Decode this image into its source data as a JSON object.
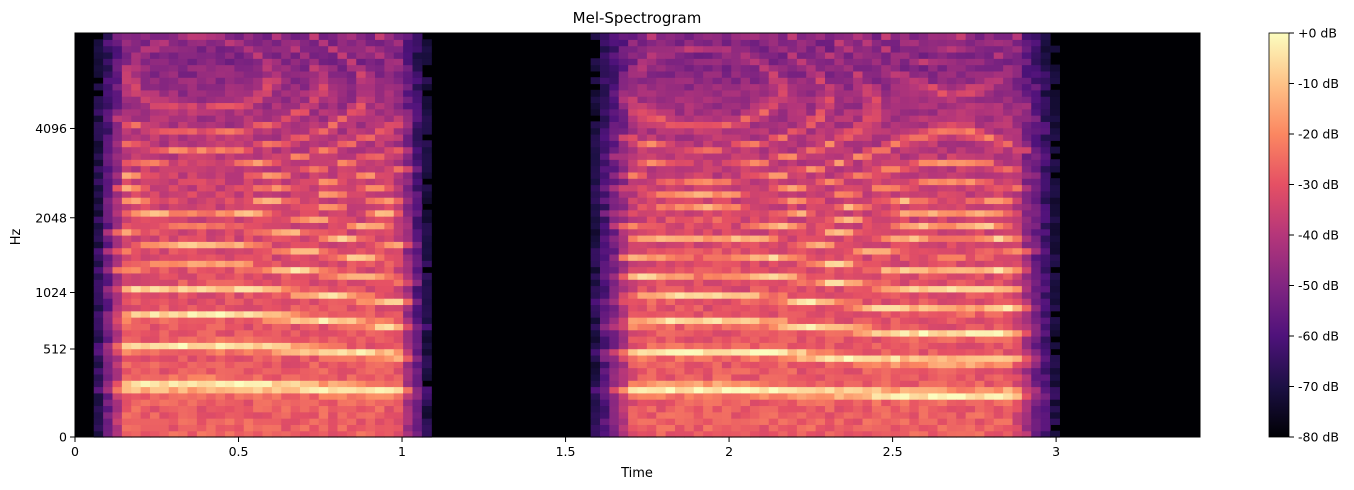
{
  "chart_data": {
    "type": "heatmap",
    "title": "Mel-Spectrogram",
    "xlabel": "Time",
    "ylabel": "Hz",
    "x_range": [
      0,
      3.44
    ],
    "x_ticks": [
      0,
      0.5,
      1,
      1.5,
      2,
      2.5,
      3
    ],
    "x_tick_labels": [
      "0",
      "0.5",
      "1",
      "1.5",
      "2",
      "2.5",
      "3"
    ],
    "y_scale": "mel",
    "y_range": [
      0,
      8000
    ],
    "y_ticks": [
      0,
      512,
      1024,
      2048,
      4096
    ],
    "y_tick_labels": [
      "0",
      "512",
      "1024",
      "2048",
      "4096"
    ],
    "colormap": "magma",
    "colorbar": {
      "range": [
        -80,
        0
      ],
      "unit": "dB",
      "ticks": [
        0,
        -10,
        -20,
        -30,
        -40,
        -50,
        -60,
        -70,
        -80
      ],
      "tick_labels": [
        "+0 dB",
        "-10 dB",
        "-20 dB",
        "-30 dB",
        "-40 dB",
        "-50 dB",
        "-60 dB",
        "-70 dB",
        "-80 dB"
      ]
    },
    "voiced_segments": [
      {
        "start": 0.06,
        "end": 1.08,
        "f0_hz": 250
      },
      {
        "start": 1.58,
        "end": 3.0,
        "f0_hz": 230
      }
    ],
    "silence_segments": [
      {
        "start": 0.0,
        "end": 0.06
      },
      {
        "start": 1.08,
        "end": 1.5
      },
      {
        "start": 3.0,
        "end": 3.44
      }
    ]
  }
}
